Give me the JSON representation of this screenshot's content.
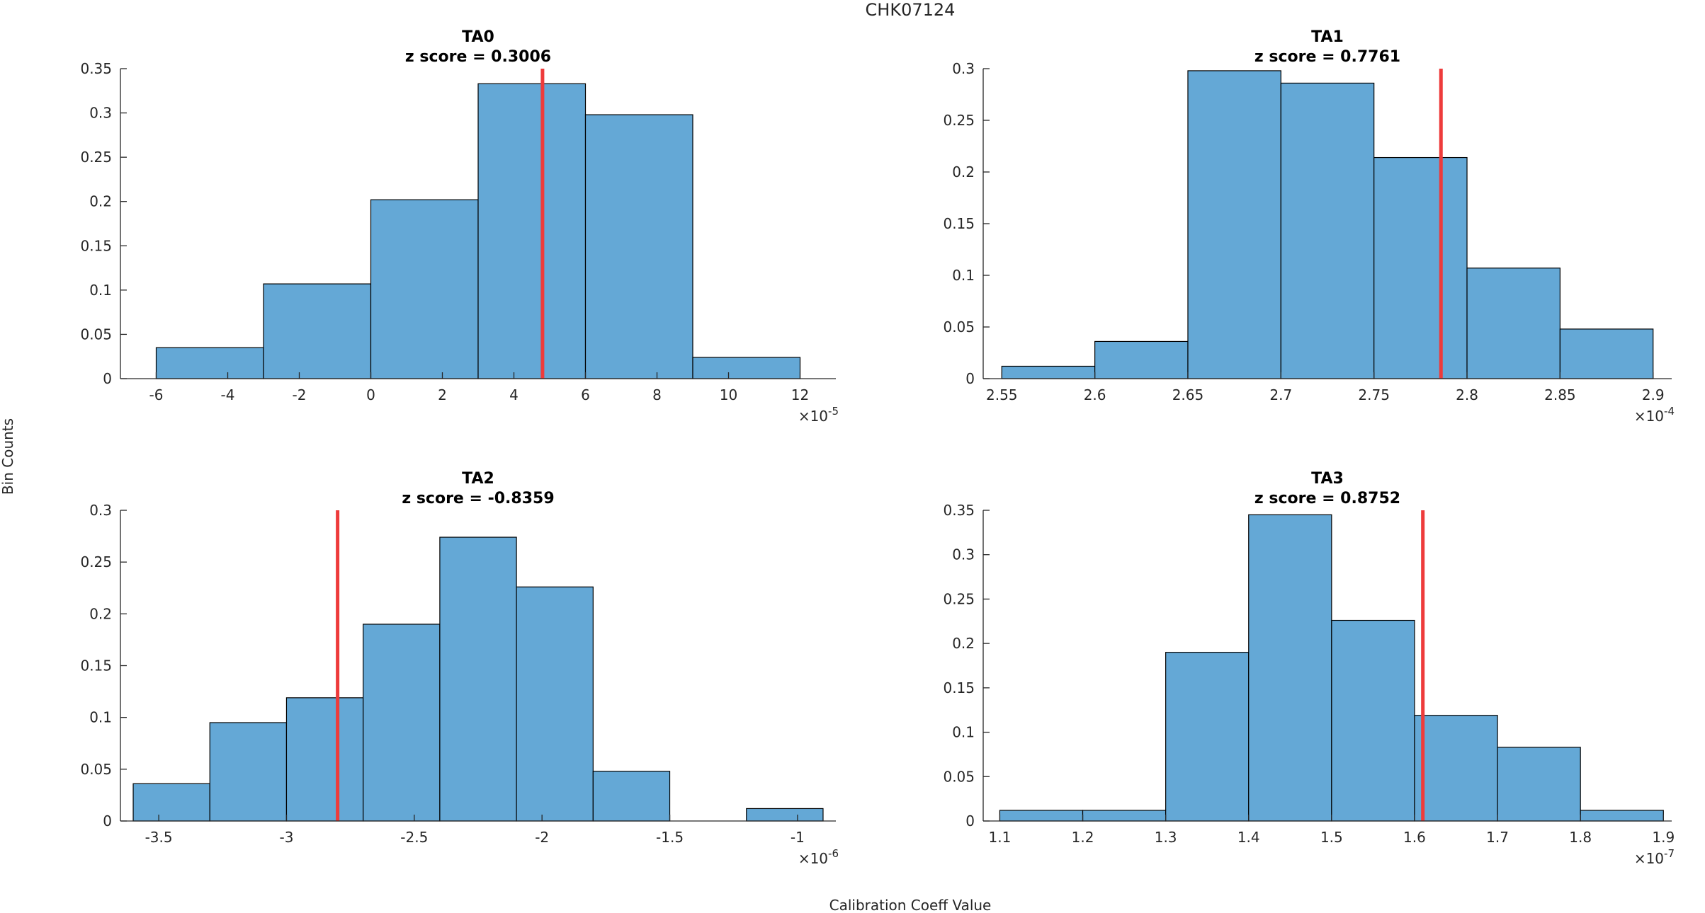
{
  "figure": {
    "suptitle": "CHK07124",
    "ylabel": "Bin Counts",
    "xlabel": "Calibration Coeff Value",
    "bar_color": "#64A8D6",
    "bar_edge_color": "#000000",
    "marker_color": "#EE3B3B",
    "axis_color": "#262626"
  },
  "chart_data": [
    {
      "type": "bar",
      "name": "TA0",
      "title": "TA0",
      "subtitle": "z score = 0.3006",
      "exponent_base": "×10",
      "exponent": "-5",
      "xlim": [
        -7,
        13
      ],
      "ylim": [
        0,
        0.35
      ],
      "xticks": [
        -6,
        -4,
        -2,
        0,
        2,
        4,
        6,
        8,
        10,
        12
      ],
      "xtick_labels": [
        "-6",
        "-4",
        "-2",
        "0",
        "2",
        "4",
        "6",
        "8",
        "10",
        "12"
      ],
      "yticks": [
        0,
        0.05,
        0.1,
        0.15,
        0.2,
        0.25,
        0.3,
        0.35
      ],
      "ytick_labels": [
        "0",
        "0.05",
        "0.1",
        "0.15",
        "0.2",
        "0.25",
        "0.3",
        "0.35"
      ],
      "bin_edges": [
        -6,
        -3,
        0,
        3,
        6,
        9,
        12
      ],
      "values": [
        0.035,
        0.107,
        0.202,
        0.333,
        0.298,
        0.024
      ],
      "marker_x": 4.8
    },
    {
      "type": "bar",
      "name": "TA1",
      "title": "TA1",
      "subtitle": "z score = 0.7761",
      "exponent_base": "×10",
      "exponent": "-4",
      "xlim": [
        2.54,
        2.91
      ],
      "ylim": [
        0,
        0.3
      ],
      "xticks": [
        2.55,
        2.6,
        2.65,
        2.7,
        2.75,
        2.8,
        2.85,
        2.9
      ],
      "xtick_labels": [
        "2.55",
        "2.6",
        "2.65",
        "2.7",
        "2.75",
        "2.8",
        "2.85",
        "2.9"
      ],
      "yticks": [
        0,
        0.05,
        0.1,
        0.15,
        0.2,
        0.25,
        0.3
      ],
      "ytick_labels": [
        "0",
        "0.05",
        "0.1",
        "0.15",
        "0.2",
        "0.25",
        "0.3"
      ],
      "bin_edges": [
        2.55,
        2.6,
        2.65,
        2.7,
        2.75,
        2.8,
        2.85,
        2.9
      ],
      "values": [
        0.012,
        0.036,
        0.298,
        0.286,
        0.214,
        0.107,
        0.048
      ],
      "marker_x": 2.786
    },
    {
      "type": "bar",
      "name": "TA2",
      "title": "TA2",
      "subtitle": "z score = -0.8359",
      "exponent_base": "×10",
      "exponent": "-6",
      "xlim": [
        -3.65,
        -0.85
      ],
      "ylim": [
        0,
        0.3
      ],
      "xticks": [
        -3.5,
        -3,
        -2.5,
        -2,
        -1.5,
        -1
      ],
      "xtick_labels": [
        "-3.5",
        "-3",
        "-2.5",
        "-2",
        "-1.5",
        "-1"
      ],
      "yticks": [
        0,
        0.05,
        0.1,
        0.15,
        0.2,
        0.25,
        0.3
      ],
      "ytick_labels": [
        "0",
        "0.05",
        "0.1",
        "0.15",
        "0.2",
        "0.25",
        "0.3"
      ],
      "bin_edges": [
        -3.6,
        -3.3,
        -3.0,
        -2.7,
        -2.4,
        -2.1,
        -1.8,
        -1.5,
        -1.2,
        -0.9
      ],
      "values": [
        0.036,
        0.095,
        0.119,
        0.19,
        0.274,
        0.226,
        0.048,
        0,
        0.012
      ],
      "marker_x": -2.8
    },
    {
      "type": "bar",
      "name": "TA3",
      "title": "TA3",
      "subtitle": "z score = 0.8752",
      "exponent_base": "×10",
      "exponent": "-7",
      "xlim": [
        1.08,
        1.91
      ],
      "ylim": [
        0,
        0.35
      ],
      "xticks": [
        1.1,
        1.2,
        1.3,
        1.4,
        1.5,
        1.6,
        1.7,
        1.8,
        1.9
      ],
      "xtick_labels": [
        "1.1",
        "1.2",
        "1.3",
        "1.4",
        "1.5",
        "1.6",
        "1.7",
        "1.8",
        "1.9"
      ],
      "yticks": [
        0,
        0.05,
        0.1,
        0.15,
        0.2,
        0.25,
        0.3,
        0.35
      ],
      "ytick_labels": [
        "0",
        "0.05",
        "0.1",
        "0.15",
        "0.2",
        "0.25",
        "0.3",
        "0.35"
      ],
      "bin_edges": [
        1.1,
        1.2,
        1.3,
        1.4,
        1.5,
        1.6,
        1.7,
        1.8,
        1.9
      ],
      "values": [
        0.012,
        0.012,
        0.19,
        0.345,
        0.226,
        0.119,
        0.083,
        0.012
      ],
      "marker_x": 1.61
    }
  ]
}
